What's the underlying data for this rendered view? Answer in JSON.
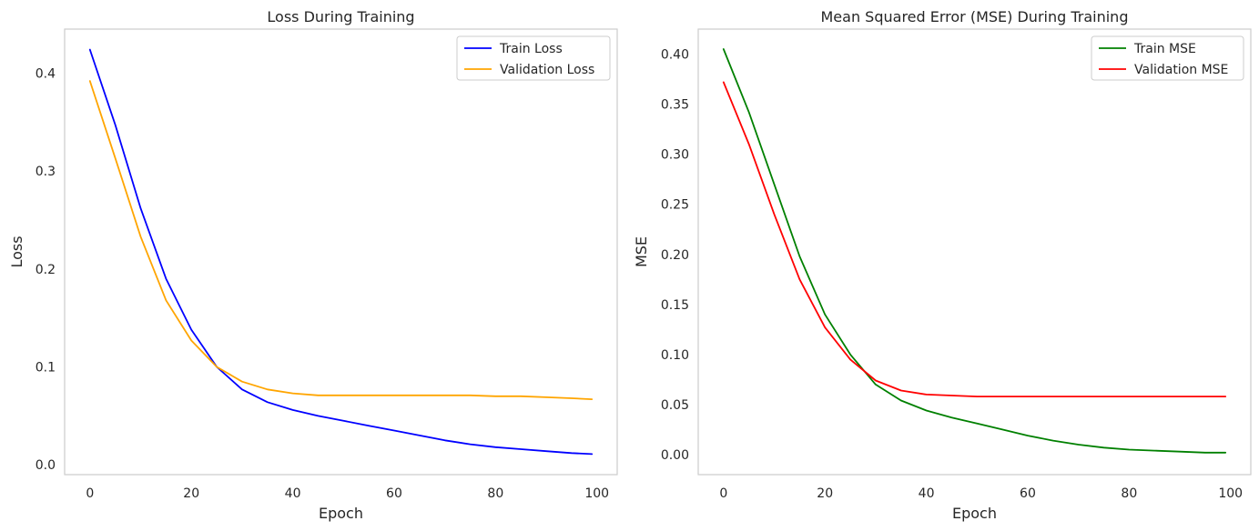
{
  "chart_data": [
    {
      "type": "line",
      "title": "Loss During Training",
      "xlabel": "Epoch",
      "ylabel": "Loss",
      "xlim": [
        -5,
        104
      ],
      "ylim": [
        -0.01,
        0.445
      ],
      "xticks": [
        0,
        20,
        40,
        60,
        80,
        100
      ],
      "xtick_labels": [
        "0",
        "20",
        "40",
        "60",
        "80",
        "100"
      ],
      "yticks": [
        0.0,
        0.1,
        0.2,
        0.3,
        0.4
      ],
      "ytick_labels": [
        "0.0",
        "0.1",
        "0.2",
        "0.3",
        "0.4"
      ],
      "grid": false,
      "legend_position": "top-right",
      "x": [
        0,
        5,
        10,
        15,
        20,
        25,
        30,
        35,
        40,
        45,
        50,
        55,
        60,
        65,
        70,
        75,
        80,
        85,
        90,
        95,
        99
      ],
      "series": [
        {
          "name": "Train Loss",
          "color": "#0000ff",
          "values": [
            0.424,
            0.347,
            0.262,
            0.19,
            0.138,
            0.1,
            0.077,
            0.064,
            0.056,
            0.05,
            0.045,
            0.04,
            0.035,
            0.03,
            0.025,
            0.021,
            0.018,
            0.016,
            0.014,
            0.012,
            0.011
          ]
        },
        {
          "name": "Validation Loss",
          "color": "#ffa500",
          "values": [
            0.392,
            0.313,
            0.233,
            0.168,
            0.127,
            0.1,
            0.085,
            0.077,
            0.073,
            0.071,
            0.071,
            0.071,
            0.071,
            0.071,
            0.071,
            0.071,
            0.07,
            0.07,
            0.069,
            0.068,
            0.067
          ]
        }
      ]
    },
    {
      "type": "line",
      "title": "Mean Squared Error (MSE) During Training",
      "xlabel": "Epoch",
      "ylabel": "MSE",
      "xlim": [
        -5,
        104
      ],
      "ylim": [
        -0.02,
        0.425
      ],
      "xticks": [
        0,
        20,
        40,
        60,
        80,
        100
      ],
      "xtick_labels": [
        "0",
        "20",
        "40",
        "60",
        "80",
        "100"
      ],
      "yticks": [
        0.0,
        0.05,
        0.1,
        0.15,
        0.2,
        0.25,
        0.3,
        0.35,
        0.4
      ],
      "ytick_labels": [
        "0.00",
        "0.05",
        "0.10",
        "0.15",
        "0.20",
        "0.25",
        "0.30",
        "0.35",
        "0.40"
      ],
      "grid": false,
      "legend_position": "top-right",
      "x": [
        0,
        5,
        10,
        15,
        20,
        25,
        30,
        35,
        40,
        45,
        50,
        55,
        60,
        65,
        70,
        75,
        80,
        85,
        90,
        95,
        99
      ],
      "series": [
        {
          "name": "Train MSE",
          "color": "#008000",
          "values": [
            0.405,
            0.342,
            0.27,
            0.198,
            0.14,
            0.1,
            0.07,
            0.054,
            0.044,
            0.037,
            0.031,
            0.025,
            0.019,
            0.014,
            0.01,
            0.007,
            0.005,
            0.004,
            0.003,
            0.002,
            0.002
          ]
        },
        {
          "name": "Validation MSE",
          "color": "#ff0000",
          "values": [
            0.372,
            0.31,
            0.24,
            0.175,
            0.127,
            0.095,
            0.074,
            0.064,
            0.06,
            0.059,
            0.058,
            0.058,
            0.058,
            0.058,
            0.058,
            0.058,
            0.058,
            0.058,
            0.058,
            0.058,
            0.058
          ]
        }
      ]
    }
  ]
}
